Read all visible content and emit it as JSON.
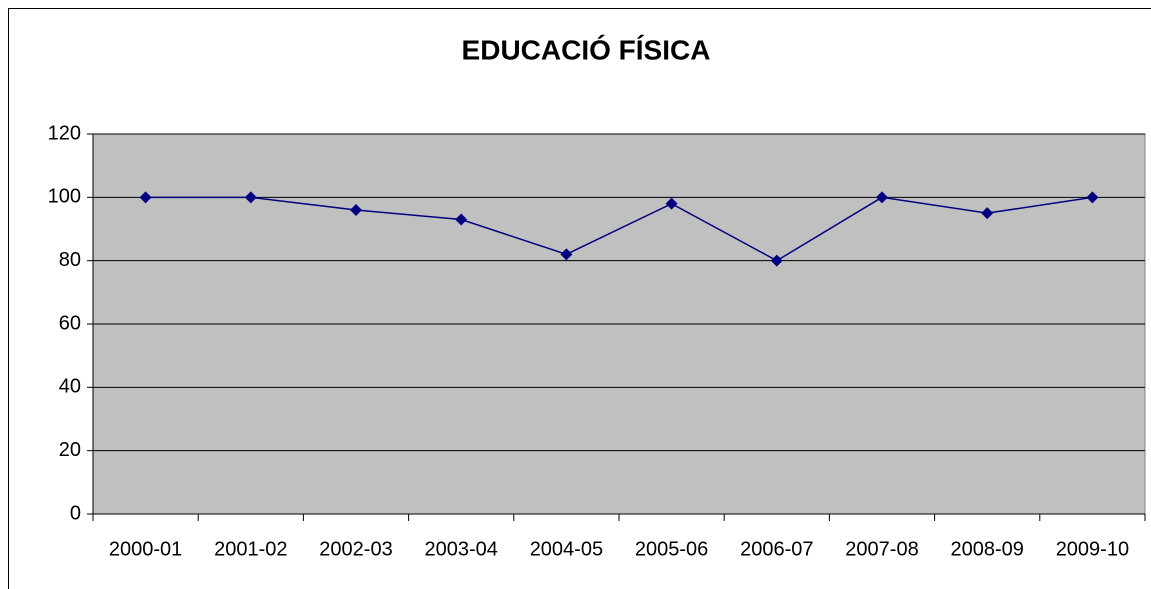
{
  "chart_data": {
    "type": "line",
    "title": "EDUCACIÓ FÍSICA",
    "categories": [
      "2000-01",
      "2001-02",
      "2002-03",
      "2003-04",
      "2004-05",
      "2005-06",
      "2006-07",
      "2007-08",
      "2008-09",
      "2009-10"
    ],
    "series": [
      {
        "color": "#000080",
        "values": [
          100,
          100,
          96,
          93,
          82,
          98,
          80,
          100,
          95,
          100
        ]
      }
    ],
    "ylim": [
      0,
      120
    ],
    "yticks": [
      0,
      20,
      40,
      60,
      80,
      100,
      120
    ],
    "grid": true,
    "plot_background": "#c0c0c0"
  }
}
